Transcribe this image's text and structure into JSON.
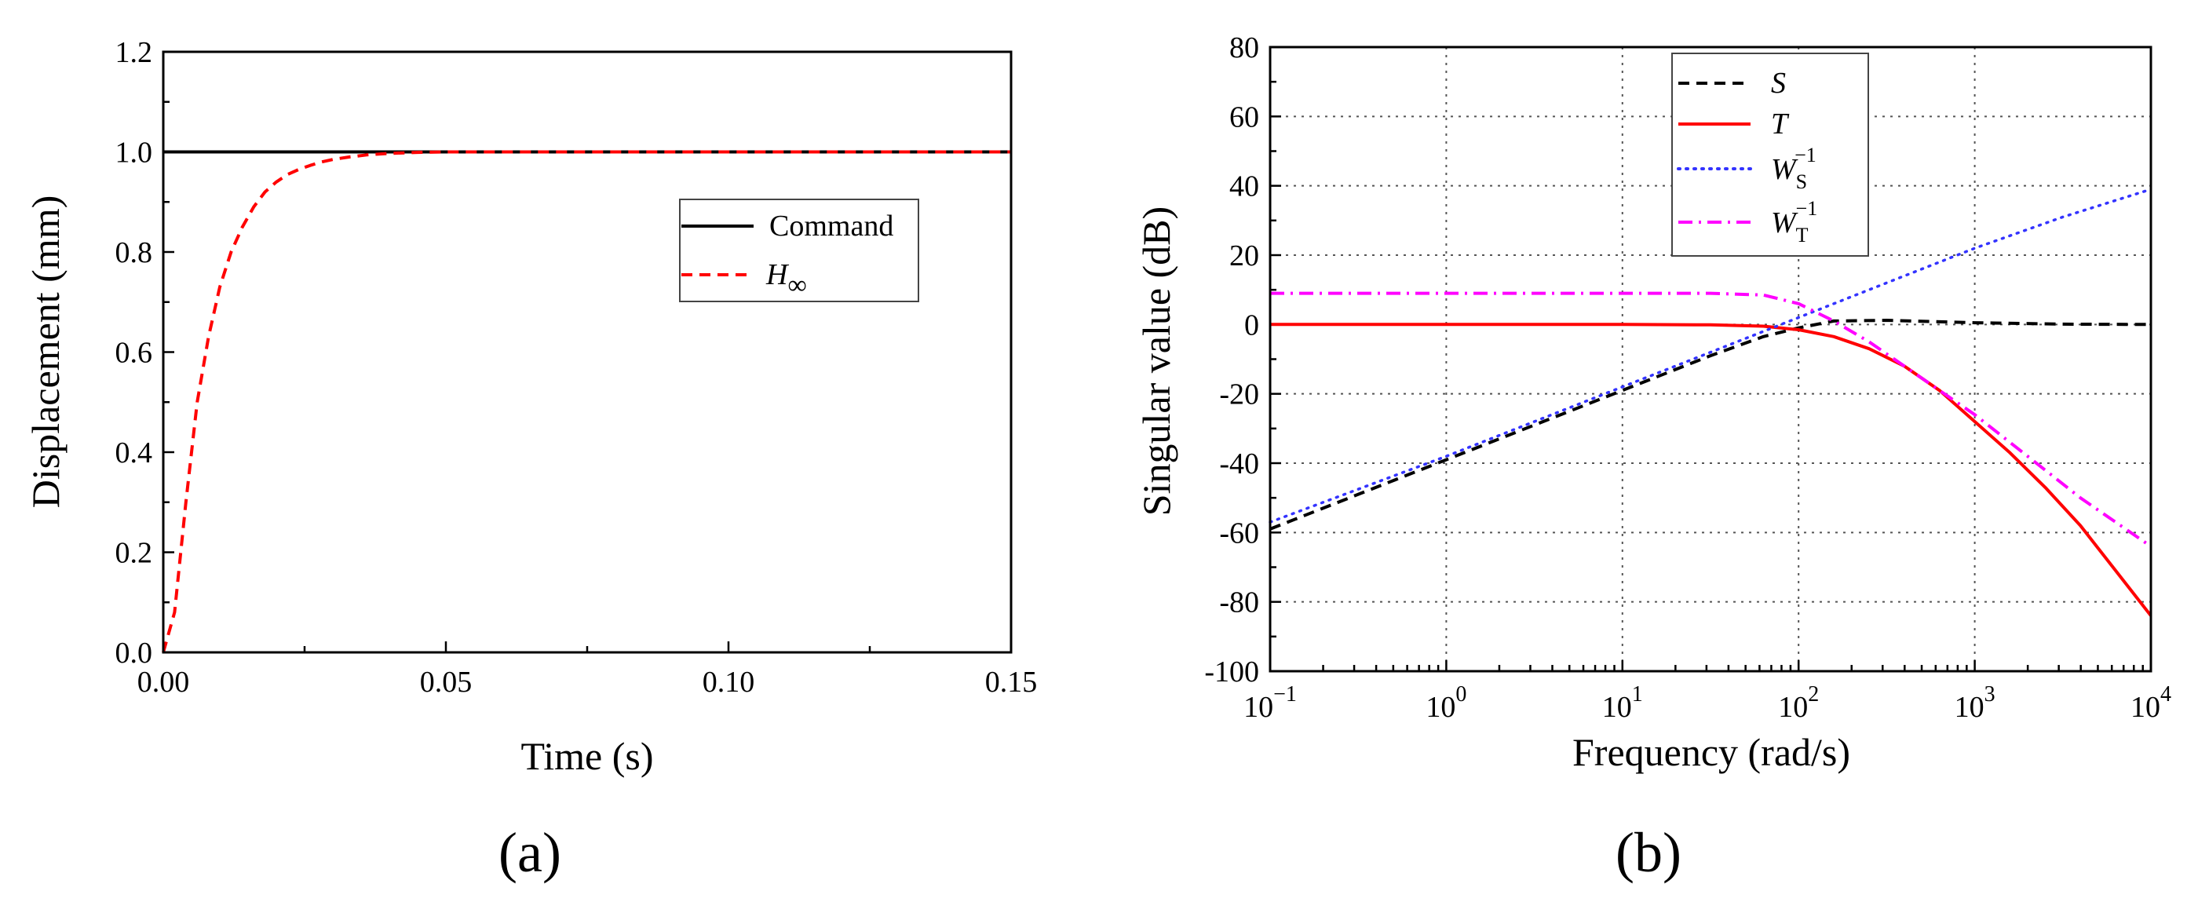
{
  "colors": {
    "black": "#000000",
    "red": "#ff0000",
    "blue": "#3333ff",
    "magenta": "#ff00ff"
  },
  "chart_data": [
    {
      "type": "line",
      "panel_label": "(a)",
      "title": "",
      "xlabel": "Time (s)",
      "ylabel": "Displacement (mm)",
      "xlim": [
        0,
        0.15
      ],
      "ylim": [
        0,
        1.2
      ],
      "x_ticks": [
        0,
        0.05,
        0.1,
        0.15
      ],
      "x_tick_labels": [
        "0.00",
        "0.05",
        "0.10",
        "0.15"
      ],
      "y_ticks": [
        0,
        0.2,
        0.4,
        0.6,
        0.8,
        1.0,
        1.2
      ],
      "y_tick_labels": [
        "0.0",
        "0.2",
        "0.4",
        "0.6",
        "0.8",
        "1.0",
        "1.2"
      ],
      "grid": false,
      "legend_position": "center-right",
      "series": [
        {
          "name": "Command",
          "legend_label": "Command",
          "color": "#000000",
          "style": "solid",
          "x": [
            0,
            0.15
          ],
          "y": [
            1.0,
            1.0
          ]
        },
        {
          "name": "H∞",
          "legend_label": "H",
          "legend_subscript": "∞",
          "color": "#ff0000",
          "style": "dashed",
          "x": [
            0,
            0.002,
            0.004,
            0.006,
            0.008,
            0.01,
            0.012,
            0.014,
            0.016,
            0.018,
            0.02,
            0.022,
            0.024,
            0.026,
            0.028,
            0.03,
            0.033,
            0.036,
            0.04,
            0.045,
            0.05,
            0.055,
            0.06,
            0.08,
            0.1,
            0.12,
            0.15
          ],
          "y": [
            0,
            0.08,
            0.3,
            0.5,
            0.63,
            0.73,
            0.8,
            0.85,
            0.89,
            0.92,
            0.94,
            0.955,
            0.965,
            0.973,
            0.98,
            0.985,
            0.99,
            0.994,
            0.997,
            0.999,
            1.0,
            1.0,
            1.0,
            1.0,
            1.0,
            1.0,
            1.0
          ]
        }
      ]
    },
    {
      "type": "line",
      "panel_label": "(b)",
      "title": "",
      "xlabel": "Frequency (rad/s)",
      "ylabel": "Singular value (dB)",
      "x_scale": "log",
      "xlim_log10": [
        -1,
        4
      ],
      "ylim": [
        -100,
        80
      ],
      "x_tick_exponents": [
        -1,
        0,
        1,
        2,
        3,
        4
      ],
      "x_tick_base": "10",
      "y_ticks": [
        -100,
        -80,
        -60,
        -40,
        -20,
        0,
        20,
        40,
        60,
        80
      ],
      "y_tick_labels": [
        "-100",
        "-80",
        "-60",
        "-40",
        "-20",
        "0",
        "20",
        "40",
        "60",
        "80"
      ],
      "grid": true,
      "legend_position": "top-center",
      "series": [
        {
          "name": "S",
          "legend_label": "S",
          "color": "#000000",
          "style": "dashed",
          "log10_x": [
            -1,
            0,
            1,
            1.5,
            1.8,
            2.0,
            2.2,
            2.5,
            3.0,
            3.5,
            4.0
          ],
          "y": [
            -59,
            -39,
            -19,
            -9,
            -3.5,
            -1,
            1,
            1.2,
            0.5,
            0.1,
            0
          ]
        },
        {
          "name": "T",
          "legend_label": "T",
          "color": "#ff0000",
          "style": "solid",
          "log10_x": [
            -1,
            0,
            1,
            1.5,
            1.8,
            2.0,
            2.2,
            2.4,
            2.6,
            2.8,
            3.0,
            3.2,
            3.4,
            3.6,
            3.8,
            4.0
          ],
          "y": [
            0,
            0,
            0,
            -0.1,
            -0.5,
            -1.5,
            -3.5,
            -7,
            -12,
            -19,
            -28,
            -37,
            -47,
            -58,
            -71,
            -84
          ]
        },
        {
          "name": "Ws^-1",
          "legend_label": "W",
          "legend_sub": "S",
          "legend_sup": "−1",
          "color": "#3333ff",
          "style": "dotted",
          "log10_x": [
            -1,
            0,
            1,
            1.5,
            2.0,
            2.5,
            3.0,
            3.5,
            4.0
          ],
          "y": [
            -57,
            -38,
            -18,
            -8,
            2,
            12,
            22,
            31,
            39
          ]
        },
        {
          "name": "WT^-1",
          "legend_label": "W",
          "legend_sub": "T",
          "legend_sup": "−1",
          "color": "#ff00ff",
          "style": "dashdot",
          "log10_x": [
            -1,
            0,
            1,
            1.5,
            1.8,
            2.0,
            2.2,
            2.4,
            2.6,
            2.8,
            3.0,
            3.2,
            3.4,
            3.6,
            3.8,
            4.0
          ],
          "y": [
            9,
            9,
            9,
            9,
            8.5,
            6,
            1,
            -5,
            -12,
            -19,
            -26,
            -34,
            -42,
            -50,
            -57,
            -64
          ]
        }
      ]
    }
  ]
}
